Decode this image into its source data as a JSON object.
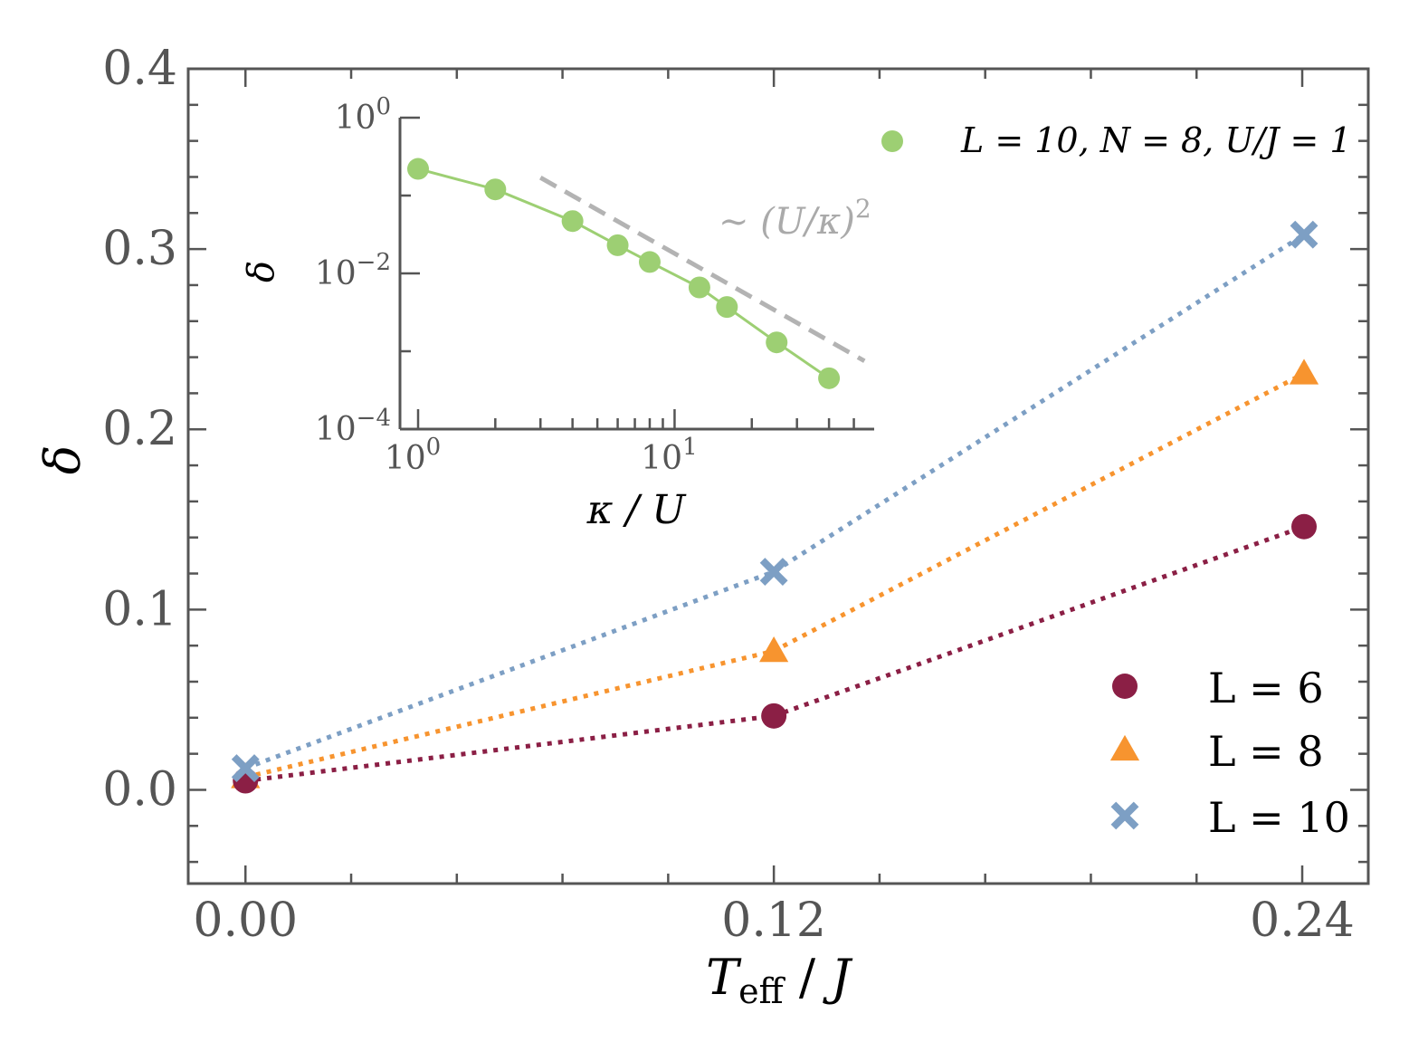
{
  "chart_data": [
    {
      "type": "scatter",
      "xlabel": "T_eff / J",
      "ylabel": "δ",
      "xlim": [
        -0.013,
        0.255
      ],
      "ylim": [
        -0.052,
        0.4
      ],
      "xticks": [
        0.0,
        0.12,
        0.24
      ],
      "xtick_labels": [
        "0.00",
        "0.12",
        "0.24"
      ],
      "yticks": [
        0.0,
        0.1,
        0.2,
        0.3,
        0.4
      ],
      "ytick_labels": [
        "0.0",
        "0.1",
        "0.2",
        "0.3",
        "0.4"
      ],
      "legend_position": "lower right",
      "grid": false,
      "x": [
        0.0,
        0.12,
        0.24
      ],
      "series": [
        {
          "name": "L = 6",
          "marker": "circle",
          "color": "#8b1f45",
          "line": "dotted",
          "values": [
            0.005,
            0.041,
            0.146
          ]
        },
        {
          "name": "L = 8",
          "marker": "triangle",
          "color": "#f7942f",
          "line": "dotted",
          "values": [
            0.007,
            0.077,
            0.231
          ]
        },
        {
          "name": "L = 10",
          "marker": "x",
          "color": "#7d9fc4",
          "line": "dotted",
          "values": [
            0.012,
            0.121,
            0.308
          ]
        }
      ]
    },
    {
      "type": "line",
      "role": "inset",
      "xlabel": "κ / U",
      "ylabel": "δ",
      "xscale": "log",
      "yscale": "log",
      "xlim": [
        0.85,
        60
      ],
      "ylim": [
        0.0001,
        1
      ],
      "xtick_labels": [
        {
          "base": "10",
          "exp": "0",
          "value": 1
        },
        {
          "base": "10",
          "exp": "1",
          "value": 10
        }
      ],
      "ytick_labels": [
        {
          "base": "10",
          "exp": "0",
          "value": 1
        },
        {
          "base": "10",
          "exp": "−2",
          "value": 0.01
        },
        {
          "base": "10",
          "exp": "−4",
          "value": 0.0001
        }
      ],
      "legend_position": "upper right",
      "series": [
        {
          "name": "L = 10, N = 8, U/J = 1",
          "marker": "circle",
          "color": "#9dcf73",
          "x": [
            1,
            2,
            4,
            6,
            8,
            12.5,
            16,
            25,
            40
          ],
          "values": [
            0.22,
            0.12,
            0.047,
            0.023,
            0.014,
            0.0066,
            0.0037,
            0.0013,
            0.00045
          ]
        },
        {
          "name": "guide",
          "style": "dashed",
          "color": "#b3b3b3",
          "x": [
            3,
            55
          ],
          "values": [
            0.17,
            0.00075
          ]
        }
      ],
      "annotation": {
        "text_prefix": "∼ (U/κ)",
        "sup": "2"
      }
    }
  ]
}
